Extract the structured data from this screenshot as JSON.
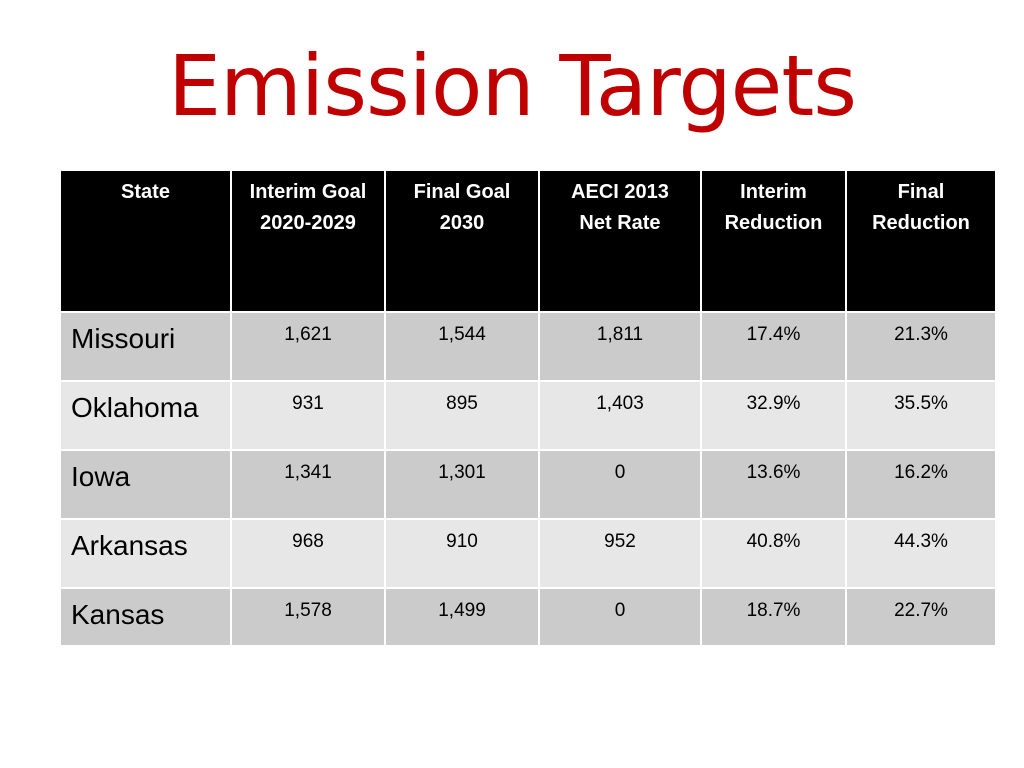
{
  "slide": {
    "title": "Emission Targets"
  },
  "table": {
    "headers": [
      {
        "line1": "State",
        "line2": ""
      },
      {
        "line1": "Interim Goal",
        "line2": "2020-2029"
      },
      {
        "line1": "Final Goal",
        "line2": "2030"
      },
      {
        "line1": "AECI 2013",
        "line2": "Net Rate"
      },
      {
        "line1": "Interim",
        "line2": "Reduction"
      },
      {
        "line1": "Final",
        "line2": "Reduction"
      }
    ],
    "rows": [
      {
        "state": "Missouri",
        "interim_goal": "1,621",
        "final_goal": "1,544",
        "aeci_net_rate": "1,811",
        "interim_reduction": "17.4%",
        "final_reduction": "21.3%"
      },
      {
        "state": "Oklahoma",
        "interim_goal": "931",
        "final_goal": "895",
        "aeci_net_rate": "1,403",
        "interim_reduction": "32.9%",
        "final_reduction": "35.5%"
      },
      {
        "state": "Iowa",
        "interim_goal": "1,341",
        "final_goal": "1,301",
        "aeci_net_rate": "0",
        "interim_reduction": "13.6%",
        "final_reduction": "16.2%"
      },
      {
        "state": "Arkansas",
        "interim_goal": "968",
        "final_goal": "910",
        "aeci_net_rate": "952",
        "interim_reduction": "40.8%",
        "final_reduction": "44.3%"
      },
      {
        "state": "Kansas",
        "interim_goal": "1,578",
        "final_goal": "1,499",
        "aeci_net_rate": "0",
        "interim_reduction": "18.7%",
        "final_reduction": "22.7%"
      }
    ]
  },
  "colors": {
    "title": "#c00000",
    "header_bg": "#000000",
    "header_text": "#ffffff",
    "row_dark": "#cbcbcb",
    "row_light": "#e7e7e7"
  }
}
